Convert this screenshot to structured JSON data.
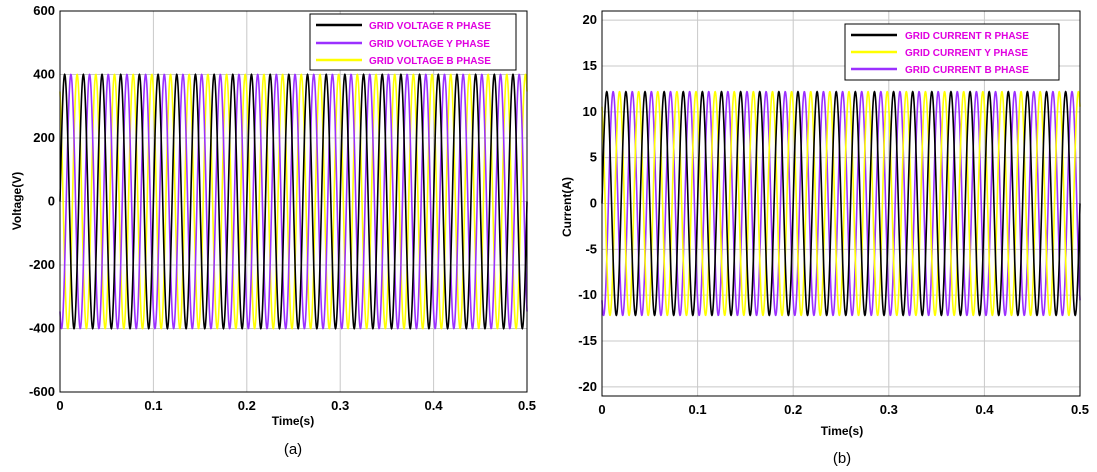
{
  "chart_data": [
    {
      "type": "line",
      "caption": "(a)",
      "xlabel": "Time(s)",
      "ylabel": "Voltage(V)",
      "xlim": [
        0,
        0.5
      ],
      "ylim": [
        -600,
        600
      ],
      "xticks": [
        "0",
        "0.1",
        "0.2",
        "0.3",
        "0.4",
        "0.5"
      ],
      "yticks": [
        "600",
        "400",
        "200",
        "0",
        "-200",
        "-400",
        "-600"
      ],
      "grid": true,
      "legend_position": "top-right",
      "legend_text_color": "#e000e0",
      "waveform": {
        "amplitude": 400,
        "frequency_hz": 50
      },
      "series": [
        {
          "name": "GRID VOLTAGE R PHASE",
          "color": "#000000",
          "phase_deg": 0
        },
        {
          "name": "GRID VOLTAGE Y PHASE",
          "color": "#9b30ff",
          "phase_deg": -120
        },
        {
          "name": "GRID VOLTAGE B PHASE",
          "color": "#ffff00",
          "phase_deg": 120
        }
      ]
    },
    {
      "type": "line",
      "caption": "(b)",
      "xlabel": "Time(s)",
      "ylabel": "Current(A)",
      "xlim": [
        0,
        0.5
      ],
      "ylim": [
        -21,
        21
      ],
      "xticks": [
        "0",
        "0.1",
        "0.2",
        "0.3",
        "0.4",
        "0.5"
      ],
      "yticks": [
        "20",
        "15",
        "10",
        "5",
        "0",
        "-5",
        "-10",
        "-15",
        "-20"
      ],
      "grid": true,
      "legend_position": "top-right",
      "legend_text_color": "#e000e0",
      "waveform": {
        "amplitude": 12.2,
        "frequency_hz": 50
      },
      "series": [
        {
          "name": "GRID CURRENT R PHASE",
          "color": "#000000",
          "phase_deg": 0
        },
        {
          "name": "GRID CURRENT Y PHASE",
          "color": "#ffff00",
          "phase_deg": 120
        },
        {
          "name": "GRID CURRENT B PHASE",
          "color": "#9b30ff",
          "phase_deg": -120
        }
      ]
    }
  ]
}
